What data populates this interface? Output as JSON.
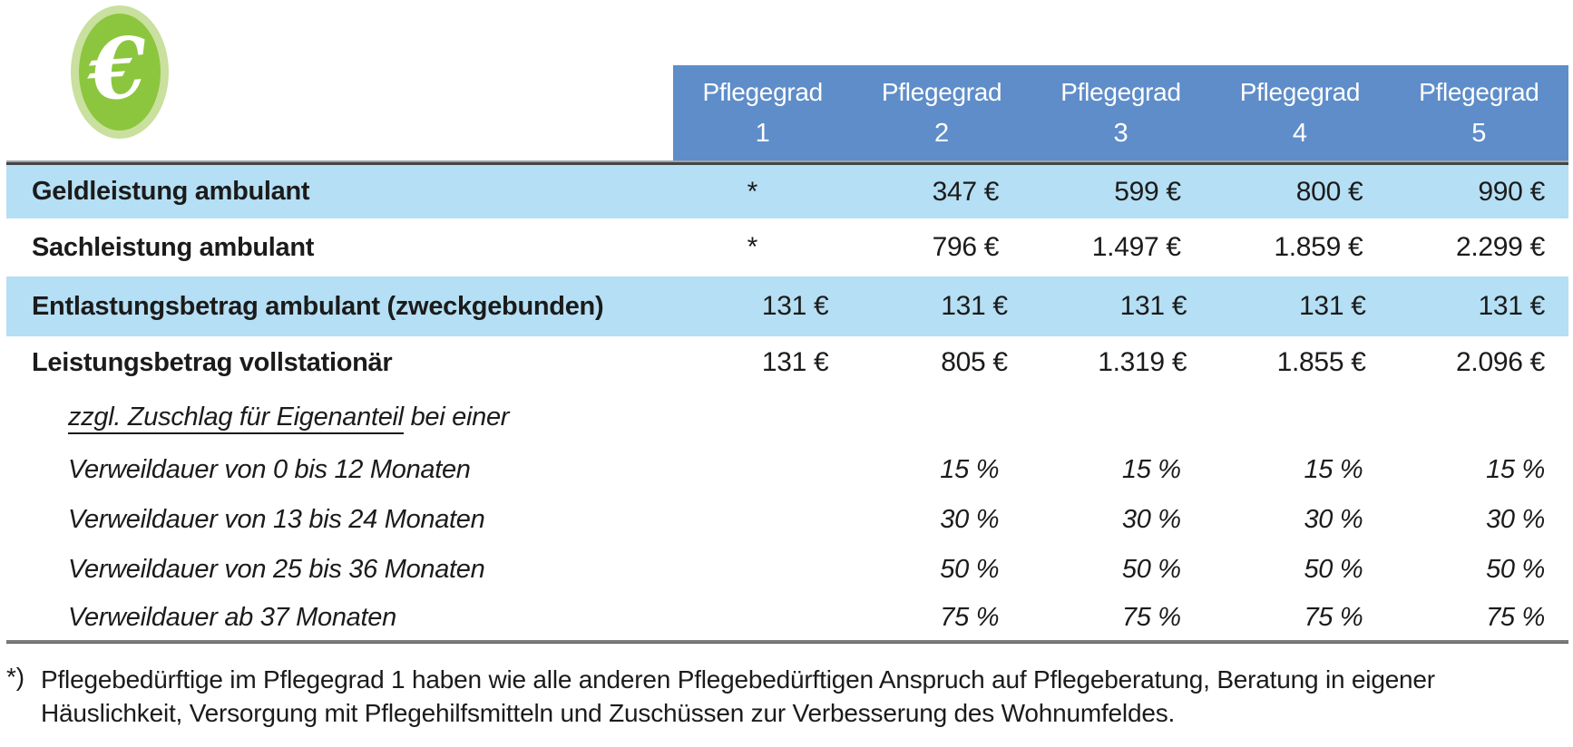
{
  "icon": {
    "glyph": "€"
  },
  "table": {
    "header": {
      "title": "Pflegegrad",
      "columns": [
        "1",
        "2",
        "3",
        "4",
        "5"
      ]
    },
    "rows": [
      {
        "label": "Geldleistung ambulant",
        "values": [
          "*",
          "347 €",
          "599 €",
          "800 €",
          "990 €"
        ]
      },
      {
        "label": "Sachleistung ambulant",
        "values": [
          "*",
          "796 €",
          "1.497 €",
          "1.859 €",
          "2.299 €"
        ]
      },
      {
        "label": "Entlastungsbetrag ambulant (zweckgebunden)",
        "values": [
          "131 €",
          "131 €",
          "131 €",
          "131 €",
          "131 €"
        ]
      },
      {
        "label": "Leistungsbetrag vollstationär",
        "values": [
          "131 €",
          "805 €",
          "1.319 €",
          "1.855 €",
          "2.096 €"
        ]
      },
      {
        "label_underlined": "zzgl. Zuschlag für Eigenanteil",
        "label_rest": " bei einer",
        "values": [
          "",
          "",
          "",
          "",
          ""
        ]
      },
      {
        "label": "Verweildauer von 0 bis 12 Monaten",
        "values": [
          "",
          "15 %",
          "15 %",
          "15 %",
          "15 %"
        ]
      },
      {
        "label": "Verweildauer von 13 bis 24 Monaten",
        "values": [
          "",
          "30 %",
          "30 %",
          "30 %",
          "30 %"
        ]
      },
      {
        "label": "Verweildauer von 25 bis 36 Monaten",
        "values": [
          "",
          "50 %",
          "50 %",
          "50 %",
          "50 %"
        ]
      },
      {
        "label": "Verweildauer ab 37 Monaten",
        "values": [
          "",
          "75 %",
          "75 %",
          "75 %",
          "75 %"
        ]
      }
    ]
  },
  "footnote": {
    "marker": "*)",
    "lines": [
      "Pflegebedürftige im Pflegegrad 1 haben wie alle anderen Pflegebedürftigen Anspruch auf Pflegeberatung, Beratung in eigener",
      "Häuslichkeit, Versorgung mit Pflegehilfsmitteln und Zuschüssen zur Verbesserung des Wohnumfeldes."
    ]
  },
  "colors": {
    "header_bg": "#5E8DC9",
    "row_highlight": "#B5DFF4",
    "icon_ring": "#C9E09E",
    "icon_fill": "#8CC63F"
  }
}
